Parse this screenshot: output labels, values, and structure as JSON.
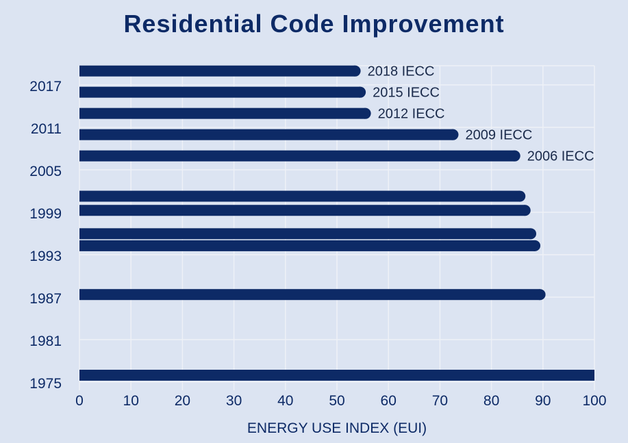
{
  "chart_data": {
    "type": "bar",
    "orientation": "horizontal",
    "title": "Residential Code Improvement",
    "xlabel": "ENERGY USE INDEX (EUI)",
    "ylabel": "",
    "xlim": [
      0,
      100
    ],
    "xticks": [
      0,
      10,
      20,
      30,
      40,
      50,
      60,
      70,
      80,
      90,
      100
    ],
    "ylim": [
      1974,
      2019
    ],
    "yticks": [
      1975,
      1981,
      1987,
      1993,
      1999,
      2005,
      2011,
      2017
    ],
    "grid": true,
    "bar_color": "#0d2a66",
    "bars": [
      {
        "year": 1975.0,
        "value": 100,
        "label": ""
      },
      {
        "year": 1986.4,
        "value": 90.5,
        "label": ""
      },
      {
        "year": 1993.3,
        "value": 89.5,
        "label": ""
      },
      {
        "year": 1995.0,
        "value": 88.7,
        "label": ""
      },
      {
        "year": 1998.3,
        "value": 87.6,
        "label": ""
      },
      {
        "year": 2000.3,
        "value": 86.6,
        "label": ""
      },
      {
        "year": 2006.0,
        "value": 85.6,
        "label": "2006 IECC"
      },
      {
        "year": 2009.0,
        "value": 73.6,
        "label": "2009 IECC"
      },
      {
        "year": 2012.0,
        "value": 56.6,
        "label": "2012 IECC"
      },
      {
        "year": 2015.0,
        "value": 55.6,
        "label": "2015 IECC"
      },
      {
        "year": 2018.0,
        "value": 54.6,
        "label": "2018 IECC"
      }
    ]
  }
}
